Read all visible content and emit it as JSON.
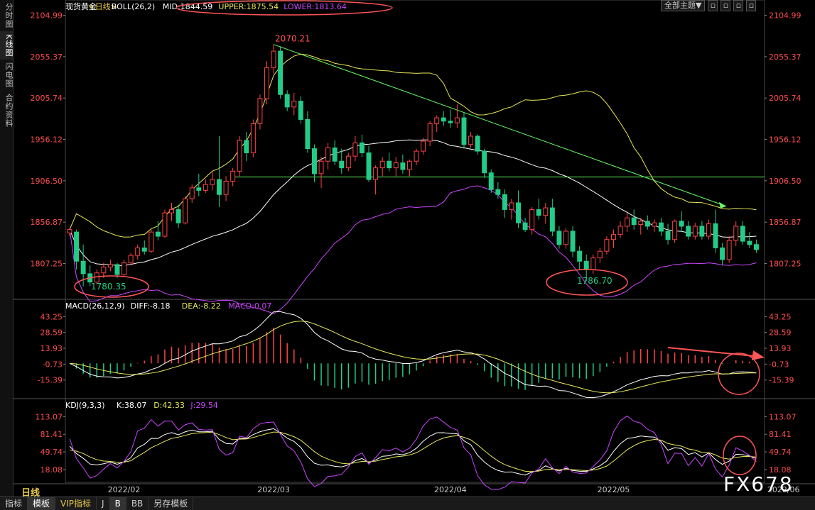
{
  "left_tabs": [
    "分时图",
    "K线图",
    "闪电图",
    "合约资料"
  ],
  "toolbar": {
    "theme_label": "全部主题▼"
  },
  "bottom_tabs": [
    "指标",
    "模板",
    "VIP指标",
    "J",
    "B",
    "BB",
    "另存模板"
  ],
  "period_label": "日线",
  "watermark": "FX678",
  "colors": {
    "up": "#ff4444",
    "down": "#22cc88",
    "mid": "#ffffff",
    "upper": "#e8e85a",
    "lower": "#cc44ff",
    "trend": "#66ff66",
    "annotation": "#ff5555"
  },
  "chart_data": [
    {
      "type": "candlestick",
      "legend": {
        "title": "现货黄金",
        "period_tag": "<日线>",
        "indicator": "BOLL(26,2)",
        "mid": "MID:1844.59",
        "upper": "UPPER:1875.54",
        "lower": "LOWER:1813.64"
      },
      "y_ticks": [
        "2104.99",
        "2055.37",
        "2005.74",
        "1956.12",
        "1906.50",
        "1856.87",
        "1807.25"
      ],
      "ylim": [
        1766,
        2108
      ],
      "x_labels": [
        "2022/02",
        "2022/03",
        "2022/04",
        "2022/05",
        "2022/06"
      ],
      "x_label_index": [
        8,
        30,
        56,
        80,
        105
      ],
      "annotations": [
        "2070.21",
        "1780.35",
        "1786.70"
      ],
      "candles": [
        [
          1844,
          1850,
          1840,
          1848
        ],
        [
          1845,
          1848,
          1800,
          1810
        ],
        [
          1810,
          1830,
          1780,
          1795
        ],
        [
          1795,
          1805,
          1780,
          1785
        ],
        [
          1785,
          1800,
          1782,
          1796
        ],
        [
          1796,
          1808,
          1790,
          1803
        ],
        [
          1803,
          1812,
          1798,
          1806
        ],
        [
          1806,
          1808,
          1790,
          1794
        ],
        [
          1794,
          1812,
          1792,
          1808
        ],
        [
          1808,
          1820,
          1805,
          1817
        ],
        [
          1817,
          1830,
          1812,
          1826
        ],
        [
          1826,
          1835,
          1818,
          1822
        ],
        [
          1822,
          1848,
          1820,
          1845
        ],
        [
          1845,
          1858,
          1835,
          1840
        ],
        [
          1840,
          1872,
          1838,
          1868
        ],
        [
          1868,
          1880,
          1858,
          1872
        ],
        [
          1872,
          1878,
          1850,
          1856
        ],
        [
          1856,
          1888,
          1854,
          1885
        ],
        [
          1885,
          1902,
          1880,
          1898
        ],
        [
          1898,
          1915,
          1888,
          1895
        ],
        [
          1895,
          1908,
          1892,
          1902
        ],
        [
          1902,
          1918,
          1895,
          1908
        ],
        [
          1908,
          1960,
          1875,
          1890
        ],
        [
          1890,
          1912,
          1882,
          1906
        ],
        [
          1906,
          1922,
          1900,
          1918
        ],
        [
          1918,
          1960,
          1912,
          1955
        ],
        [
          1955,
          1965,
          1930,
          1940
        ],
        [
          1940,
          1980,
          1935,
          1975
        ],
        [
          1975,
          2010,
          1968,
          2005
        ],
        [
          2005,
          2050,
          1998,
          2042
        ],
        [
          2042,
          2070,
          2035,
          2062
        ],
        [
          2062,
          2068,
          2005,
          2010
        ],
        [
          2010,
          2015,
          1990,
          1995
        ],
        [
          1995,
          2012,
          1985,
          2002
        ],
        [
          2002,
          2008,
          1975,
          1980
        ],
        [
          1980,
          1990,
          1940,
          1945
        ],
        [
          1945,
          1950,
          1905,
          1915
        ],
        [
          1915,
          1935,
          1898,
          1930
        ],
        [
          1930,
          1952,
          1920,
          1946
        ],
        [
          1946,
          1955,
          1925,
          1930
        ],
        [
          1930,
          1945,
          1915,
          1922
        ],
        [
          1922,
          1940,
          1918,
          1936
        ],
        [
          1936,
          1960,
          1930,
          1952
        ],
        [
          1952,
          1962,
          1935,
          1940
        ],
        [
          1940,
          1948,
          1905,
          1908
        ],
        [
          1908,
          1925,
          1890,
          1922
        ],
        [
          1922,
          1935,
          1912,
          1930
        ],
        [
          1930,
          1940,
          1918,
          1922
        ],
        [
          1922,
          1935,
          1912,
          1928
        ],
        [
          1928,
          1938,
          1915,
          1920
        ],
        [
          1920,
          1932,
          1912,
          1930
        ],
        [
          1930,
          1945,
          1925,
          1942
        ],
        [
          1942,
          1958,
          1938,
          1954
        ],
        [
          1954,
          1978,
          1948,
          1975
        ],
        [
          1975,
          1985,
          1965,
          1982
        ],
        [
          1982,
          1990,
          1972,
          1978
        ],
        [
          1978,
          1992,
          1970,
          1976
        ],
        [
          1976,
          1998,
          1970,
          1982
        ],
        [
          1982,
          1988,
          1945,
          1950
        ],
        [
          1950,
          1965,
          1946,
          1960
        ],
        [
          1960,
          1962,
          1938,
          1942
        ],
        [
          1942,
          1945,
          1910,
          1916
        ],
        [
          1916,
          1920,
          1892,
          1896
        ],
        [
          1896,
          1905,
          1885,
          1890
        ],
        [
          1890,
          1896,
          1862,
          1872
        ],
        [
          1872,
          1885,
          1860,
          1880
        ],
        [
          1880,
          1895,
          1850,
          1856
        ],
        [
          1856,
          1862,
          1845,
          1848
        ],
        [
          1848,
          1875,
          1842,
          1872
        ],
        [
          1872,
          1885,
          1860,
          1865
        ],
        [
          1865,
          1880,
          1855,
          1874
        ],
        [
          1874,
          1885,
          1840,
          1846
        ],
        [
          1846,
          1852,
          1825,
          1830
        ],
        [
          1830,
          1850,
          1825,
          1846
        ],
        [
          1846,
          1852,
          1815,
          1822
        ],
        [
          1822,
          1828,
          1800,
          1810
        ],
        [
          1810,
          1818,
          1786,
          1800
        ],
        [
          1800,
          1818,
          1795,
          1814
        ],
        [
          1814,
          1826,
          1808,
          1822
        ],
        [
          1822,
          1840,
          1818,
          1836
        ],
        [
          1836,
          1848,
          1826,
          1842
        ],
        [
          1842,
          1858,
          1838,
          1852
        ],
        [
          1852,
          1868,
          1845,
          1862
        ],
        [
          1862,
          1872,
          1848,
          1854
        ],
        [
          1854,
          1862,
          1842,
          1858
        ],
        [
          1858,
          1865,
          1848,
          1852
        ],
        [
          1852,
          1860,
          1845,
          1856
        ],
        [
          1856,
          1862,
          1840,
          1846
        ],
        [
          1846,
          1855,
          1830,
          1836
        ],
        [
          1836,
          1860,
          1832,
          1858
        ],
        [
          1858,
          1870,
          1845,
          1852
        ],
        [
          1852,
          1858,
          1836,
          1840
        ],
        [
          1840,
          1856,
          1836,
          1852
        ],
        [
          1852,
          1858,
          1836,
          1840
        ],
        [
          1840,
          1860,
          1836,
          1855
        ],
        [
          1855,
          1872,
          1820,
          1826
        ],
        [
          1826,
          1832,
          1805,
          1812
        ],
        [
          1812,
          1840,
          1808,
          1835
        ],
        [
          1835,
          1858,
          1828,
          1852
        ],
        [
          1852,
          1858,
          1830,
          1834
        ],
        [
          1834,
          1845,
          1826,
          1830
        ],
        [
          1830,
          1836,
          1820,
          1824
        ]
      ]
    },
    {
      "type": "macd",
      "legend": {
        "title": "MACD(26,12,9)",
        "diff": "DIFF:-8.18",
        "dea": "DEA:-8.22",
        "macd": "MACD:0.07"
      },
      "y_ticks": [
        "43.25",
        "28.59",
        "13.93",
        "-0.73",
        "-15.39"
      ],
      "ylim": [
        -30,
        50
      ]
    },
    {
      "type": "kdj",
      "legend": {
        "title": "KDJ(9,3,3)",
        "k": "K:38.07",
        "d": "D:42.33",
        "j": "J:29.54"
      },
      "y_ticks": [
        "113.07",
        "81.41",
        "49.74",
        "18.08"
      ],
      "ylim": [
        -5,
        125
      ]
    }
  ]
}
